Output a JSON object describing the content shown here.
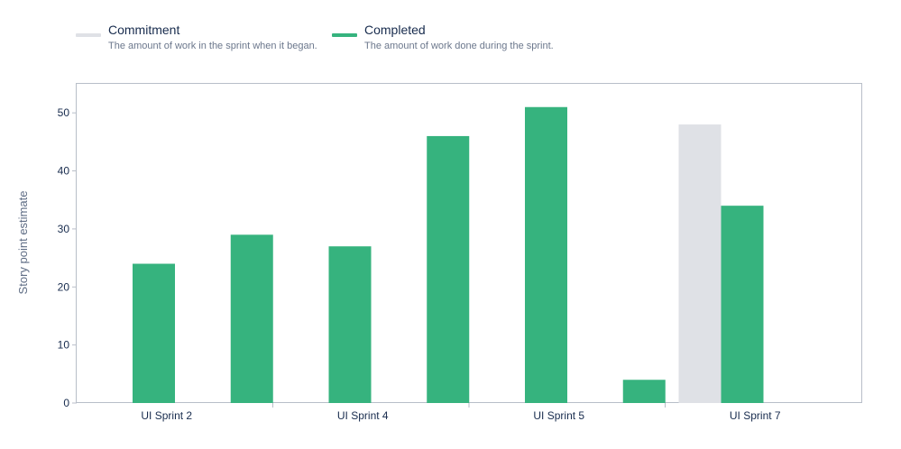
{
  "legend": {
    "commitment": {
      "title": "Commitment",
      "description": "The amount of work in the sprint when it began.",
      "color": "#dfe1e6"
    },
    "completed": {
      "title": "Completed",
      "description": "The amount of work done during the sprint.",
      "color": "#36b37e"
    }
  },
  "chart_data": {
    "type": "bar",
    "ylabel": "Story point estimate",
    "ylim": [
      0,
      55
    ],
    "yticks": [
      0,
      10,
      20,
      30,
      40,
      50
    ],
    "grid": false,
    "legend_position": "top-left",
    "categories": [
      "",
      "UI Sprint 2",
      "",
      "UI Sprint 4",
      "",
      "UI Sprint 5",
      "",
      "UI Sprint 7"
    ],
    "category_labels_shown": [
      "UI Sprint 2",
      "UI Sprint 4",
      "UI Sprint 5",
      "UI Sprint 7"
    ],
    "series": [
      {
        "name": "Commitment",
        "color": "#dfe1e6",
        "values": [
          0,
          0,
          0,
          0,
          0,
          0,
          48,
          0
        ]
      },
      {
        "name": "Completed",
        "color": "#36b37e",
        "values": [
          24,
          29,
          27,
          46,
          51,
          4,
          34,
          0
        ]
      }
    ]
  }
}
